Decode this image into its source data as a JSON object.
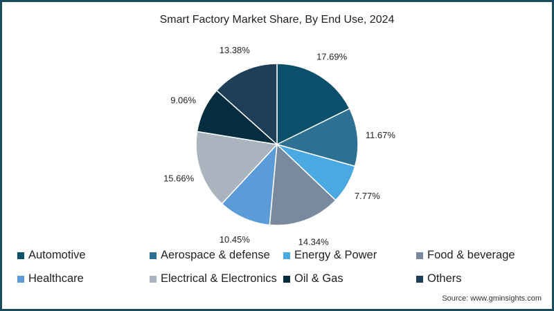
{
  "chart_data": {
    "type": "pie",
    "title": "Smart Factory Market Share, By End Use, 2024",
    "categories": [
      "Automotive",
      "Aerospace & defense",
      "Energy & Power",
      "Food & beverage",
      "Healthcare",
      "Electrical & Electronics",
      "Oil & Gas",
      "Others"
    ],
    "values": [
      17.69,
      11.67,
      7.77,
      14.34,
      10.45,
      15.66,
      9.06,
      13.38
    ],
    "labels": [
      "17.69%",
      "11.67%",
      "7.77%",
      "14.34%",
      "10.45%",
      "15.66%",
      "9.06%",
      "13.38%"
    ],
    "colors": [
      "#0b4f6c",
      "#2e6f94",
      "#4aa9e0",
      "#7a8a9e",
      "#5b9bd8",
      "#a9b4bf",
      "#062c3f",
      "#1e3f57"
    ],
    "start": "top",
    "direction": "clockwise",
    "legend": "bottom"
  },
  "source": "Source: www.gminsights.com"
}
